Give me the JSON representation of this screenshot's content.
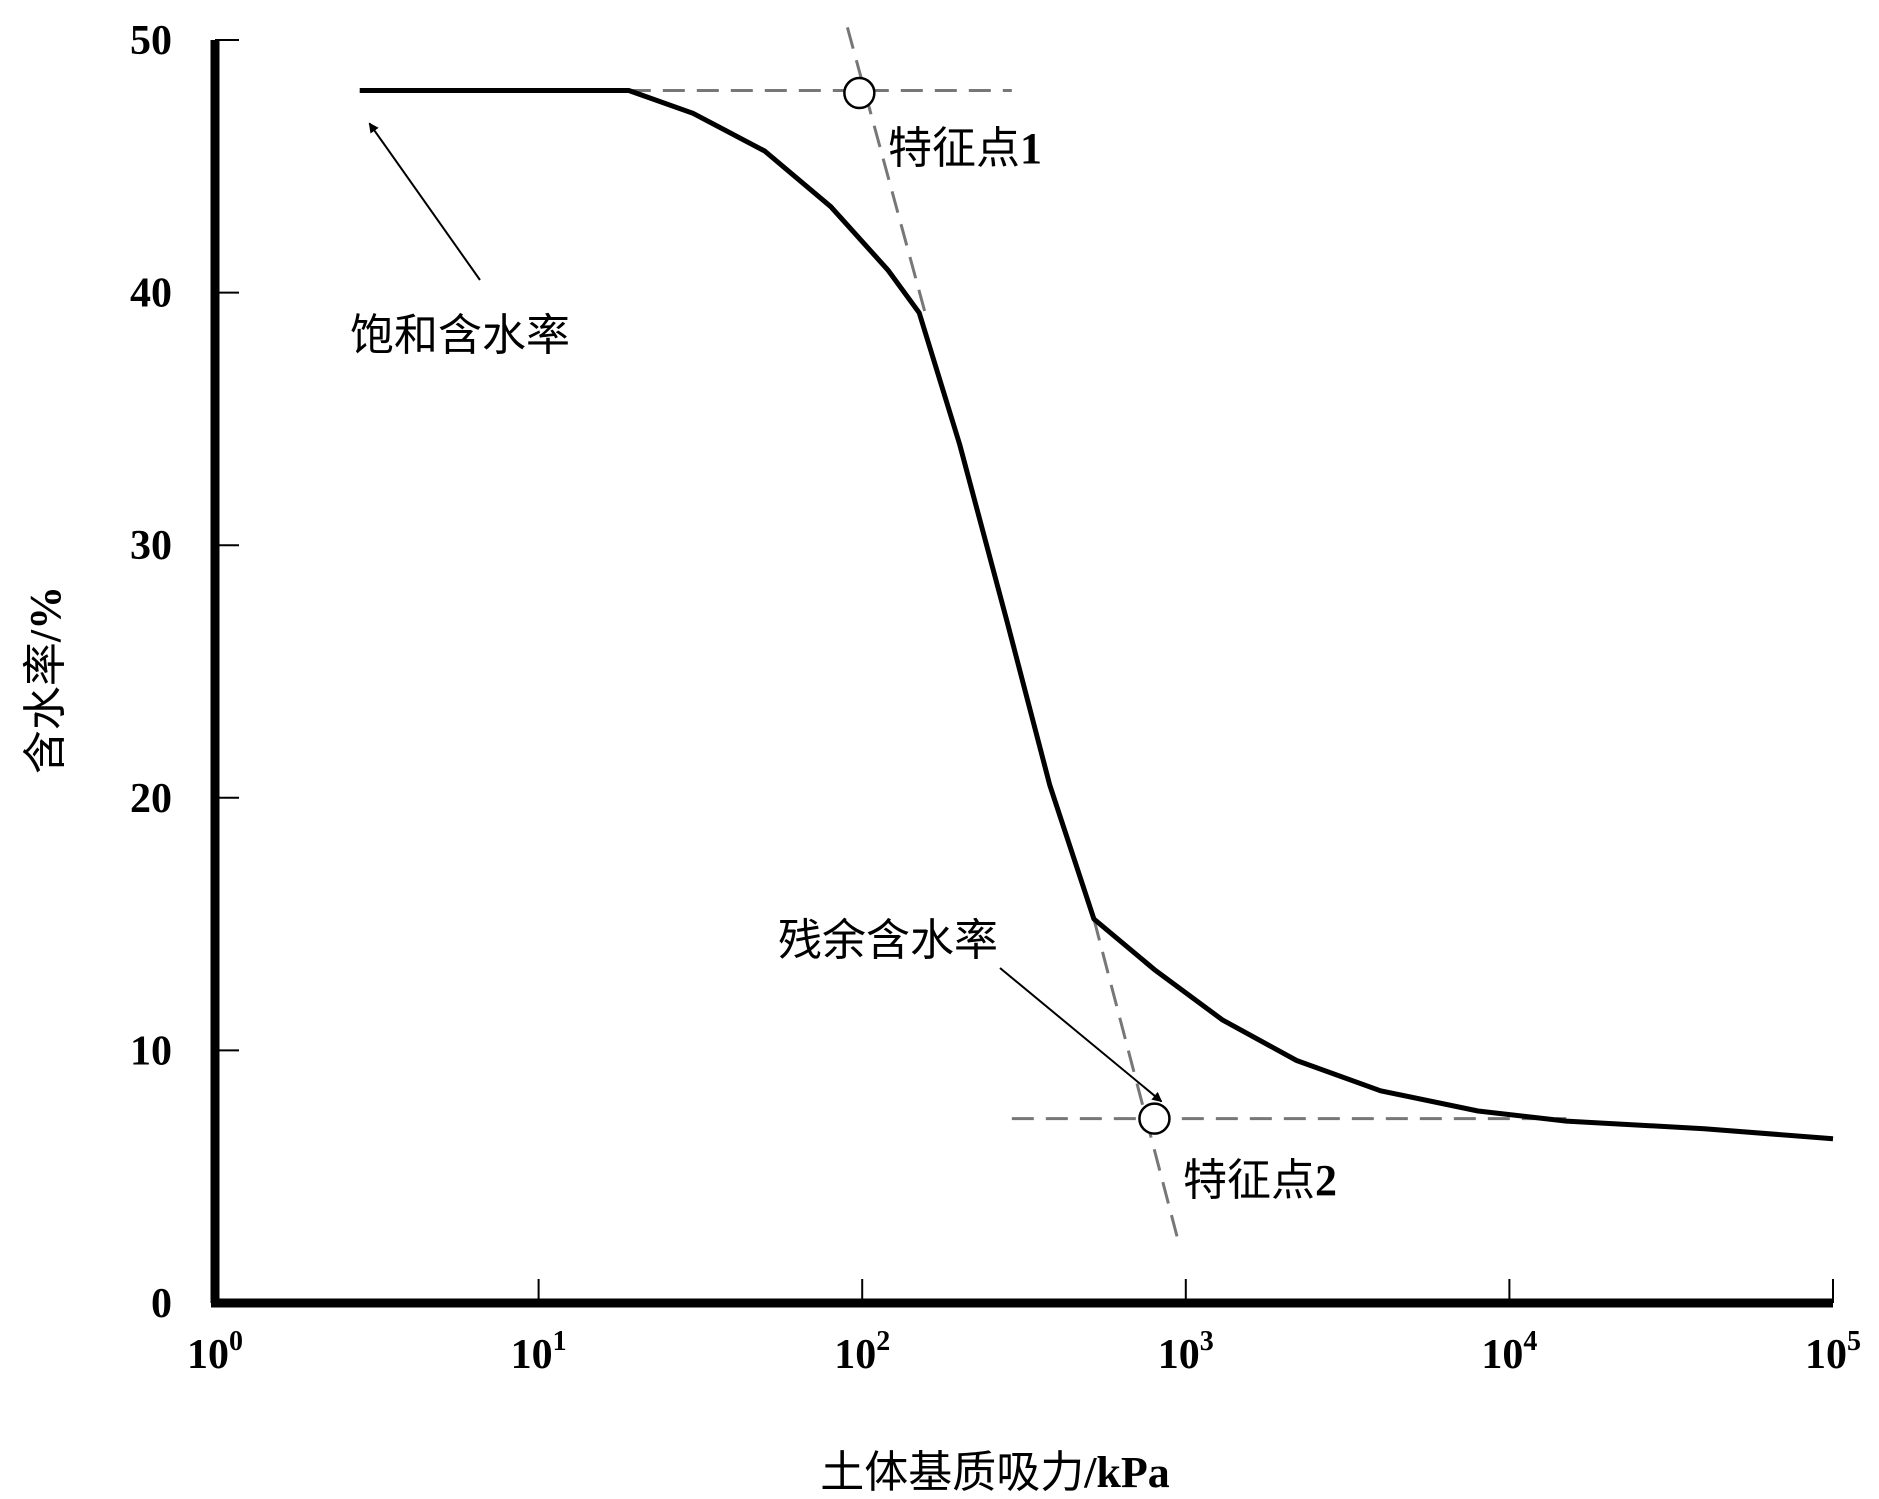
{
  "chart_data": {
    "type": "line",
    "title": "",
    "xlabel": "土体基质吸力/kPa",
    "ylabel": "含水率/%",
    "x_scale": "log",
    "xlim": [
      1,
      100000
    ],
    "ylim": [
      0,
      50
    ],
    "grid": false,
    "x_ticks": [
      {
        "value": 1,
        "base": "10",
        "exp": "0"
      },
      {
        "value": 10,
        "base": "10",
        "exp": "1"
      },
      {
        "value": 100,
        "base": "10",
        "exp": "2"
      },
      {
        "value": 1000,
        "base": "10",
        "exp": "3"
      },
      {
        "value": 10000,
        "base": "10",
        "exp": "4"
      },
      {
        "value": 100000,
        "base": "10",
        "exp": "5"
      }
    ],
    "y_ticks": [
      "0",
      "10",
      "20",
      "30",
      "40",
      "50"
    ],
    "series": [
      {
        "name": "",
        "points": [
          {
            "x": 2.8,
            "y": 48.0
          },
          {
            "x": 10,
            "y": 48.0
          },
          {
            "x": 19,
            "y": 48.0
          },
          {
            "x": 30,
            "y": 47.1
          },
          {
            "x": 50,
            "y": 45.6
          },
          {
            "x": 80,
            "y": 43.4
          },
          {
            "x": 120,
            "y": 40.9
          },
          {
            "x": 150,
            "y": 39.2
          },
          {
            "x": 200,
            "y": 34.0
          },
          {
            "x": 280,
            "y": 27.0
          },
          {
            "x": 380,
            "y": 20.5
          },
          {
            "x": 520,
            "y": 15.2
          },
          {
            "x": 800,
            "y": 13.2
          },
          {
            "x": 1300,
            "y": 11.2
          },
          {
            "x": 2200,
            "y": 9.6
          },
          {
            "x": 4000,
            "y": 8.4
          },
          {
            "x": 8000,
            "y": 7.6
          },
          {
            "x": 15000,
            "y": 7.2
          },
          {
            "x": 40000,
            "y": 6.9
          },
          {
            "x": 100000,
            "y": 6.5
          }
        ]
      }
    ],
    "guide_lines": {
      "upper_horizontal": {
        "x": [
          19,
          290
        ],
        "y": 48.0
      },
      "upper_tangent": {
        "from": {
          "x": 90,
          "y": 50.5
        },
        "to": {
          "x": 158,
          "y": 39.0
        }
      },
      "lower_horizontal": {
        "x": [
          290,
          15000
        ],
        "y": 7.3
      },
      "lower_tangent": {
        "from": {
          "x": 520,
          "y": 15.2
        },
        "to": {
          "x": 950,
          "y": 2.4
        }
      }
    },
    "feature_points": [
      {
        "label": "特征点",
        "num": "1",
        "x": 98,
        "y": 47.9
      },
      {
        "label": "特征点",
        "num": "2",
        "x": 800,
        "y": 7.3
      }
    ],
    "annotations": [
      {
        "text": "饱和含水率",
        "points_to": {
          "x": 3.0,
          "y": 46.7
        }
      },
      {
        "text": "残余含水率",
        "points_to": {
          "x": 740,
          "y": 7.9
        }
      }
    ]
  }
}
